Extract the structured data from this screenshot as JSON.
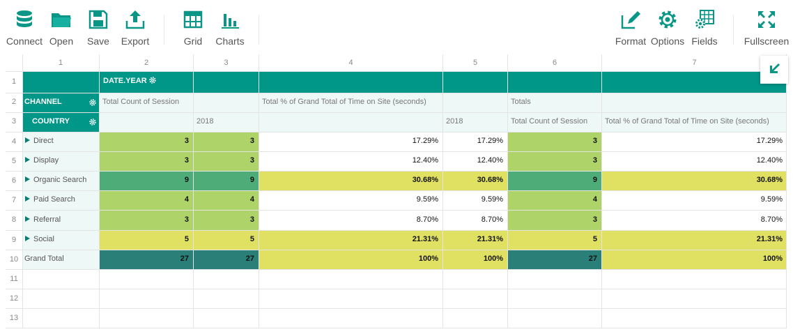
{
  "toolbar": {
    "connect": "Connect",
    "open": "Open",
    "save": "Save",
    "export": "Export",
    "grid": "Grid",
    "charts": "Charts",
    "format": "Format",
    "options": "Options",
    "fields": "Fields",
    "fullscreen": "Fullscreen"
  },
  "columns": [
    "1",
    "2",
    "3",
    "4",
    "5",
    "6",
    "7"
  ],
  "row_numbers": [
    "1",
    "2",
    "3",
    "4",
    "5",
    "6",
    "7",
    "8",
    "9",
    "10",
    "11",
    "12",
    "13"
  ],
  "pivot": {
    "column_field": "DATE.YEAR",
    "row_field_1": "CHANNEL",
    "row_field_2": "COUNTRY",
    "measure_1": "Total Count of Session",
    "measure_2": "Total % of Grand Total of Time on Site (seconds)",
    "totals": "Totals",
    "totals_measure_1": "Total Count of Session",
    "totals_measure_2": "Total % of Grand Total of Time on Site (seconds)",
    "year_1": "2018",
    "year_2": "2018",
    "rows": [
      {
        "label": "Direct",
        "v": [
          "3",
          "3",
          "17.29%",
          "17.29%",
          "3",
          "17.29%"
        ]
      },
      {
        "label": "Display",
        "v": [
          "3",
          "3",
          "12.40%",
          "12.40%",
          "3",
          "12.40%"
        ]
      },
      {
        "label": "Organic Search",
        "v": [
          "9",
          "9",
          "30.68%",
          "30.68%",
          "9",
          "30.68%"
        ]
      },
      {
        "label": "Paid Search",
        "v": [
          "4",
          "4",
          "9.59%",
          "9.59%",
          "4",
          "9.59%"
        ]
      },
      {
        "label": "Referral",
        "v": [
          "3",
          "3",
          "8.70%",
          "8.70%",
          "3",
          "8.70%"
        ]
      },
      {
        "label": "Social",
        "v": [
          "5",
          "5",
          "21.31%",
          "21.31%",
          "5",
          "21.31%"
        ]
      }
    ],
    "grand_total": {
      "label": "Grand Total",
      "v": [
        "27",
        "27",
        "100%",
        "100%",
        "27",
        "100%"
      ]
    }
  },
  "colors": {
    "accent": "#009688",
    "green": "#aed369",
    "teal": "#4eac78",
    "dark": "#2a7f79",
    "yellow": "#e0e063"
  }
}
